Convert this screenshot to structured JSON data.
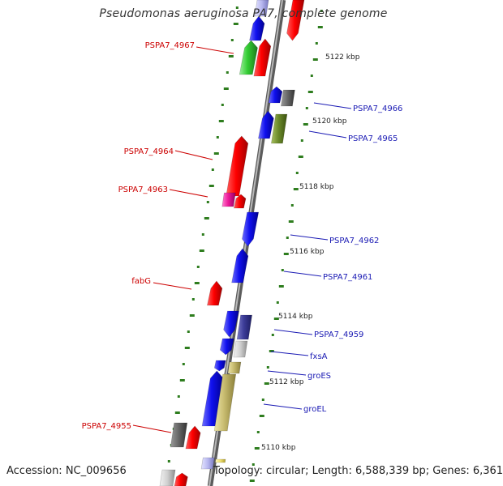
{
  "title": "Pseudomonas aeruginosa PA7, complete genome",
  "accession_text": "Accession: NC_009656",
  "topology_text": "Topology: circular; Length: 6,588,339 bp; Genes: 6,361",
  "colors": {
    "axis": "#8c8c8c",
    "tick": "#2e7d1e",
    "left_label": "#cc0000",
    "right_label": "#1a1ab4",
    "scale_text": "#222222"
  },
  "scale_labels": [
    "5122 kbp",
    "5120 kbp",
    "5118 kbp",
    "5116 kbp",
    "5114 kbp",
    "5112 kbp",
    "5110 kbp"
  ],
  "gene_labels": {
    "left": [
      "PSPA7_4967",
      "PSPA7_4964",
      "PSPA7_4963",
      "fabG",
      "PSPA7_4955"
    ],
    "right": [
      "PSPA7_4966",
      "PSPA7_4965",
      "PSPA7_4962",
      "PSPA7_4961",
      "PSPA7_4959",
      "fxsA",
      "groES",
      "groEL"
    ]
  }
}
